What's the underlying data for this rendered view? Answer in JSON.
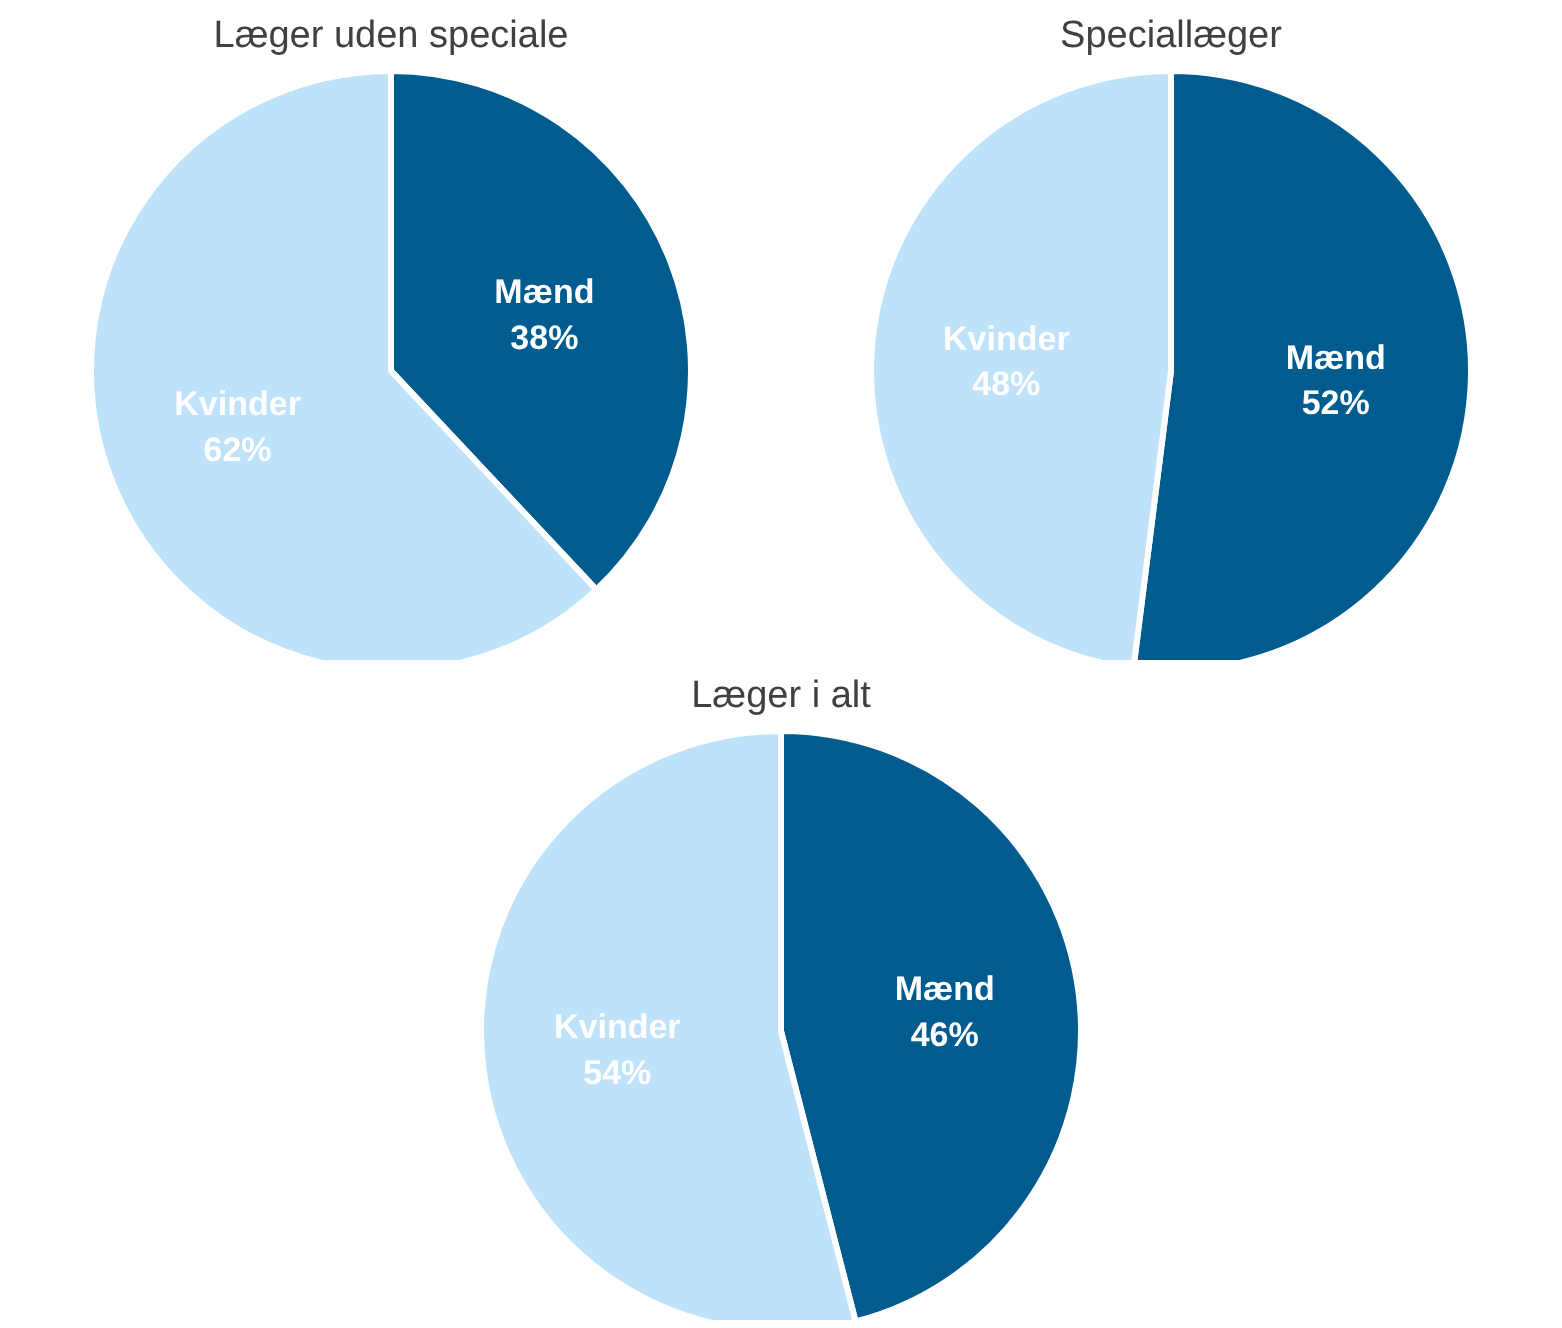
{
  "chart_data": [
    {
      "type": "pie",
      "title": "Læger uden speciale",
      "categories": [
        "Mænd",
        "Kvinder"
      ],
      "values": [
        38,
        62
      ],
      "colors": [
        "#005b8e",
        "#bfe2fb"
      ],
      "value_labels": [
        "38%",
        "62%"
      ]
    },
    {
      "type": "pie",
      "title": "Speciallæger",
      "categories": [
        "Mænd",
        "Kvinder"
      ],
      "values": [
        52,
        48
      ],
      "colors": [
        "#005b8e",
        "#bfe2fb"
      ],
      "value_labels": [
        "52%",
        "48%"
      ]
    },
    {
      "type": "pie",
      "title": "Læger i alt",
      "categories": [
        "Mænd",
        "Kvinder"
      ],
      "values": [
        46,
        54
      ],
      "colors": [
        "#005b8e",
        "#bfe2fb"
      ],
      "value_labels": [
        "46%",
        "54%"
      ]
    }
  ]
}
